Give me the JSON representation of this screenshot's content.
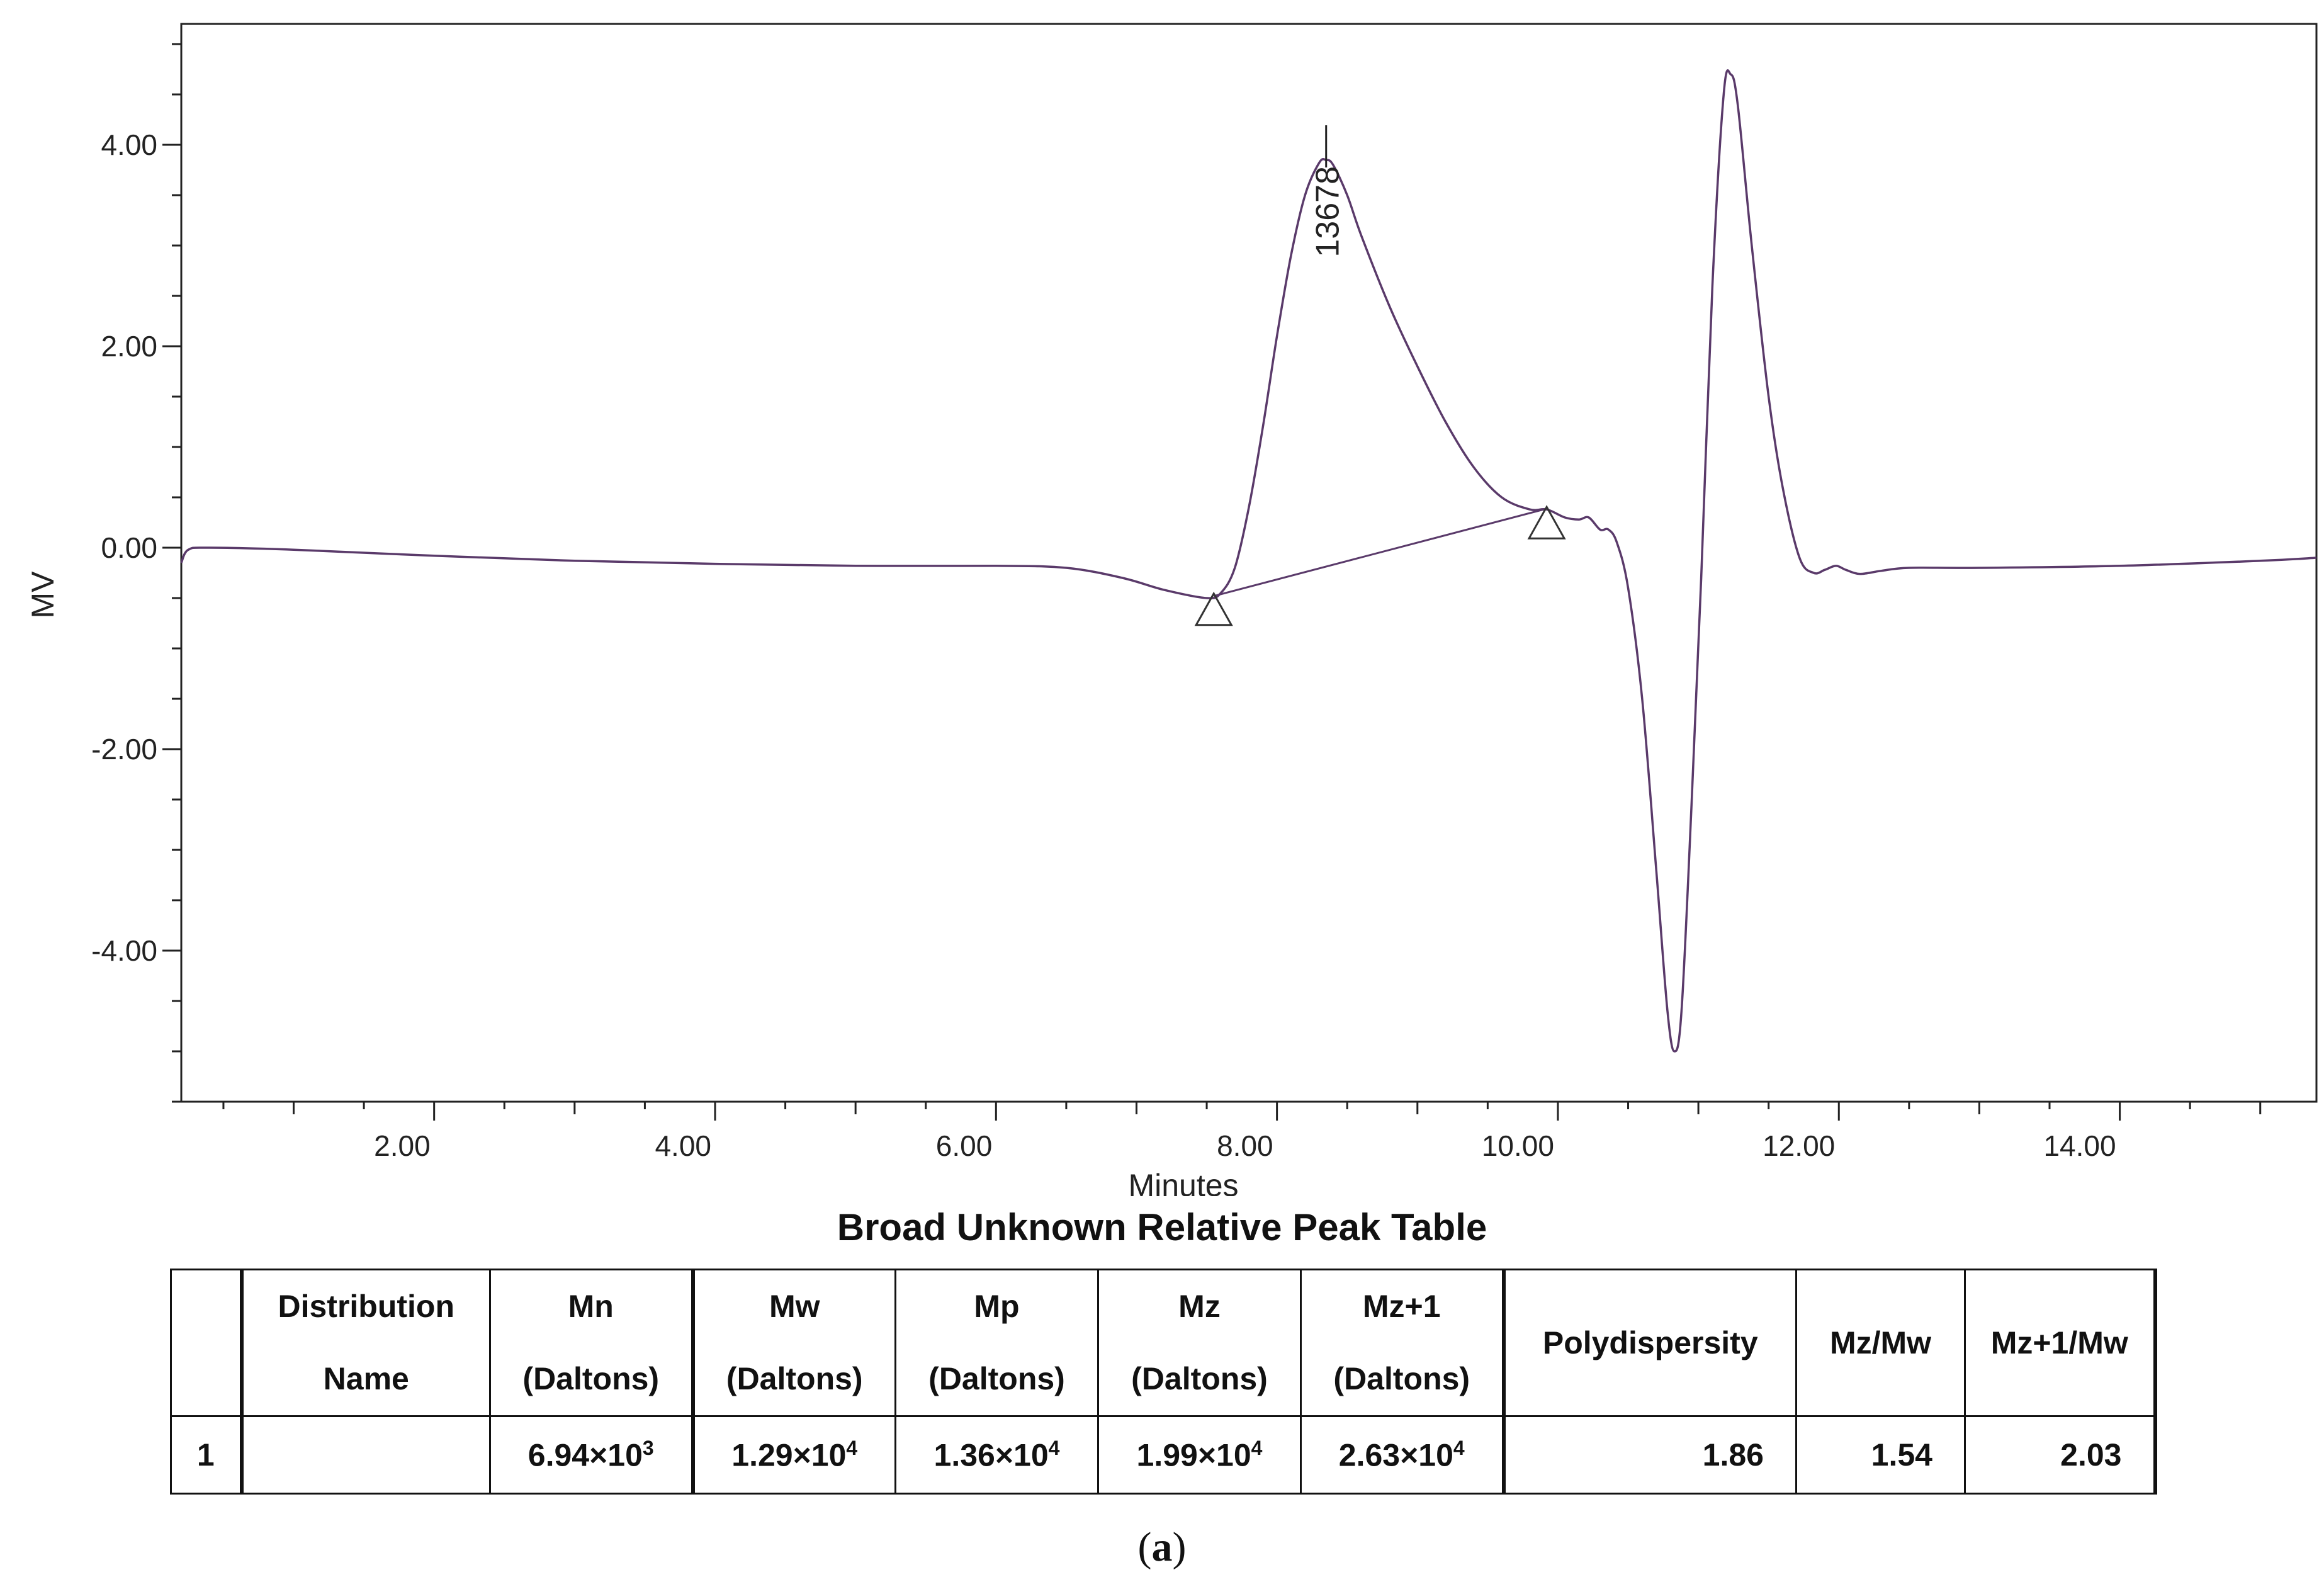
{
  "chart_data": {
    "type": "line",
    "title": "",
    "xlabel": "Minutes",
    "ylabel": "MV",
    "xlim": [
      0.2,
      15.4
    ],
    "ylim": [
      -5.5,
      5.2
    ],
    "x_ticks": [
      2.0,
      4.0,
      6.0,
      8.0,
      10.0,
      12.0,
      14.0
    ],
    "x_tick_labels": [
      "2.00",
      "4.00",
      "6.00",
      "8.00",
      "10.00",
      "12.00",
      "14.00"
    ],
    "y_ticks": [
      4.0,
      2.0,
      0.0,
      -2.0,
      -4.0
    ],
    "y_tick_labels": [
      "4.00",
      "2.00",
      "0.00",
      "-2.00",
      "-4.00"
    ],
    "grid": false,
    "series": [
      {
        "color": "#5a3a6a",
        "points": [
          [
            0.2,
            -0.15
          ],
          [
            0.25,
            -0.02
          ],
          [
            0.4,
            0.0
          ],
          [
            1.0,
            -0.02
          ],
          [
            2.0,
            -0.08
          ],
          [
            3.0,
            -0.13
          ],
          [
            4.0,
            -0.16
          ],
          [
            5.0,
            -0.18
          ],
          [
            6.0,
            -0.18
          ],
          [
            6.5,
            -0.2
          ],
          [
            6.9,
            -0.3
          ],
          [
            7.2,
            -0.42
          ],
          [
            7.5,
            -0.5
          ],
          [
            7.6,
            -0.45
          ],
          [
            7.7,
            -0.2
          ],
          [
            7.8,
            0.4
          ],
          [
            7.9,
            1.2
          ],
          [
            8.0,
            2.1
          ],
          [
            8.1,
            2.9
          ],
          [
            8.2,
            3.5
          ],
          [
            8.3,
            3.82
          ],
          [
            8.35,
            3.85
          ],
          [
            8.4,
            3.8
          ],
          [
            8.5,
            3.5
          ],
          [
            8.6,
            3.1
          ],
          [
            8.8,
            2.4
          ],
          [
            9.0,
            1.8
          ],
          [
            9.2,
            1.25
          ],
          [
            9.4,
            0.8
          ],
          [
            9.6,
            0.5
          ],
          [
            9.8,
            0.38
          ],
          [
            9.92,
            0.38
          ],
          [
            10.05,
            0.3
          ],
          [
            10.15,
            0.28
          ],
          [
            10.22,
            0.3
          ],
          [
            10.3,
            0.18
          ],
          [
            10.36,
            0.18
          ],
          [
            10.42,
            0.05
          ],
          [
            10.5,
            -0.4
          ],
          [
            10.6,
            -1.5
          ],
          [
            10.7,
            -3.2
          ],
          [
            10.78,
            -4.6
          ],
          [
            10.83,
            -5.0
          ],
          [
            10.88,
            -4.6
          ],
          [
            10.95,
            -2.6
          ],
          [
            11.02,
            -0.3
          ],
          [
            11.1,
            2.6
          ],
          [
            11.18,
            4.5
          ],
          [
            11.23,
            4.7
          ],
          [
            11.28,
            4.4
          ],
          [
            11.38,
            3.0
          ],
          [
            11.5,
            1.5
          ],
          [
            11.6,
            0.6
          ],
          [
            11.72,
            -0.1
          ],
          [
            11.82,
            -0.25
          ],
          [
            11.9,
            -0.22
          ],
          [
            11.98,
            -0.18
          ],
          [
            12.05,
            -0.22
          ],
          [
            12.15,
            -0.26
          ],
          [
            12.3,
            -0.23
          ],
          [
            12.5,
            -0.2
          ],
          [
            13.0,
            -0.2
          ],
          [
            14.0,
            -0.18
          ],
          [
            15.0,
            -0.13
          ],
          [
            15.4,
            -0.1
          ]
        ]
      }
    ],
    "baseline": [
      [
        7.55,
        -0.48
      ],
      [
        9.9,
        0.38
      ]
    ],
    "baseline_markers": [
      [
        7.55,
        -0.48
      ],
      [
        9.92,
        0.38
      ]
    ],
    "peak_marker": {
      "x": 8.35,
      "y": 3.85,
      "label": "13678"
    }
  },
  "table": {
    "title": "Broad Unknown Relative Peak Table",
    "headers": [
      {
        "line1": "",
        "line2": ""
      },
      {
        "line1": "Distribution",
        "line2": "Name"
      },
      {
        "line1": "Mn",
        "line2": "(Daltons)"
      },
      {
        "line1": "Mw",
        "line2": "(Daltons)"
      },
      {
        "line1": "Mp",
        "line2": "(Daltons)"
      },
      {
        "line1": "Mz",
        "line2": "(Daltons)"
      },
      {
        "line1": "Mz+1",
        "line2": "(Daltons)"
      },
      {
        "line1": "Polydispersity",
        "line2": ""
      },
      {
        "line1": "Mz/Mw",
        "line2": ""
      },
      {
        "line1": "Mz+1/Mw",
        "line2": ""
      }
    ],
    "row": {
      "index": "1",
      "name": "",
      "mn": {
        "base": "6.94×10",
        "exp": "3"
      },
      "mw": {
        "base": "1.29×10",
        "exp": "4"
      },
      "mp": {
        "base": "1.36×10",
        "exp": "4"
      },
      "mz": {
        "base": "1.99×10",
        "exp": "4"
      },
      "mz1": {
        "base": "2.63×10",
        "exp": "4"
      },
      "polydispersity": "1.86",
      "mz_mw": "1.54",
      "mz1_mw": "2.03"
    }
  },
  "caption": {
    "open": "(",
    "letter": "a",
    "close": ")"
  }
}
